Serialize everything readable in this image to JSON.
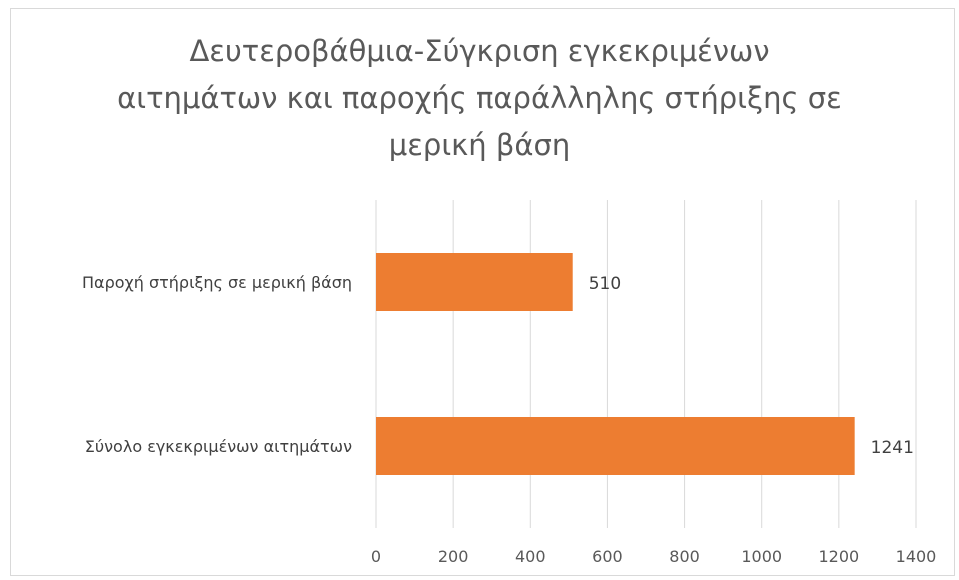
{
  "chart_data": {
    "type": "bar",
    "orientation": "horizontal",
    "title_lines": [
      "Δευτεροβάθμια-Σύγκριση  εγκεκριμένων",
      "αιτημάτων και παροχής παράλληλης στήριξης σε",
      "μερική βάση"
    ],
    "categories": [
      "Παροχή στήριξης σε μερική βάση",
      "Σύνολο εγκεκριμένων αιτημάτων"
    ],
    "values": [
      510,
      1241
    ],
    "data_labels": [
      "510",
      "1241"
    ],
    "xlim": [
      0,
      1400
    ],
    "x_ticks": [
      0,
      200,
      400,
      600,
      800,
      1000,
      1200,
      1400
    ],
    "grid": true,
    "legend": "none",
    "bar_color": "#ed7d31"
  }
}
